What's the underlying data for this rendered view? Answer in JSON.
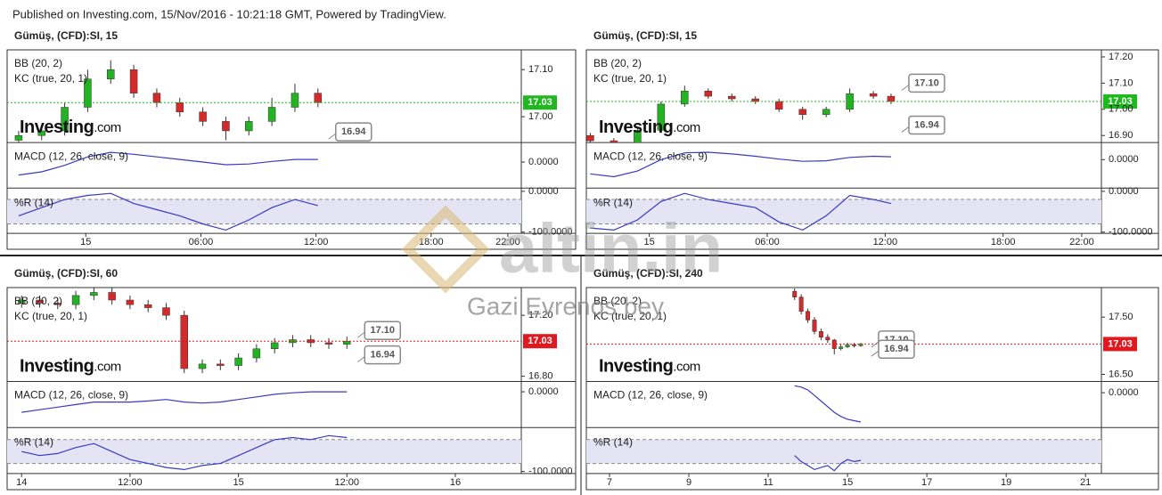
{
  "header": "Published on Investing.com, 15/Nov/2016 - 10:21:18 GMT, Powered by TradingView.",
  "brand": [
    "Investing",
    ".com"
  ],
  "watermark": [
    "altin.in",
    "Gazi Evrenos bey"
  ],
  "chart_data": [
    {
      "type": "candlestick",
      "title": "Gümüş, (CFD):SI, 15",
      "indicators": [
        "BB (20, 2)",
        "KC (true, 20, 1)"
      ],
      "x": [
        -3.5,
        -2.3,
        -1.1,
        0.1,
        1.3,
        2.5,
        3.7,
        4.9,
        6.1,
        7.3,
        8.5,
        9.7,
        10.9,
        12.1
      ],
      "open": [
        16.95,
        16.96,
        16.97,
        17.02,
        17.08,
        17.1,
        17.05,
        17.03,
        17.01,
        16.99,
        16.97,
        16.99,
        17.02,
        17.05
      ],
      "high": [
        16.97,
        16.98,
        17.03,
        17.1,
        17.12,
        17.11,
        17.06,
        17.04,
        17.02,
        17.0,
        17.0,
        17.04,
        17.07,
        17.06
      ],
      "low": [
        16.94,
        16.95,
        16.96,
        17.01,
        17.07,
        17.04,
        17.02,
        17.0,
        16.98,
        16.95,
        16.96,
        16.98,
        17.01,
        17.02
      ],
      "close": [
        16.96,
        16.97,
        17.02,
        17.08,
        17.1,
        17.05,
        17.03,
        17.01,
        16.99,
        16.97,
        16.99,
        17.02,
        17.05,
        17.03
      ],
      "xlim": [
        -4.1,
        22.7
      ],
      "xticks": [
        {
          "value": 0,
          "label": "15"
        },
        {
          "value": 6,
          "label": "06:00"
        },
        {
          "value": 12,
          "label": "12:00"
        },
        {
          "value": 18,
          "label": "18:00"
        },
        {
          "value": 22,
          "label": "22:00"
        }
      ],
      "ylim": [
        16.945,
        17.142
      ],
      "yticks": [
        {
          "value": 17,
          "label": "17.00"
        },
        {
          "value": 17.1,
          "label": "17.10"
        }
      ],
      "last_price": {
        "value": 17.03,
        "label": "17.03"
      },
      "last_price_color": "#1fb81f",
      "alerts": [
        {
          "value": 16.94,
          "label": "16.94"
        }
      ],
      "macd": {
        "name": "MACD (12, 26, close, 9)",
        "values": [
          -0.02,
          -0.015,
          -0.005,
          0.008,
          0.015,
          0.012,
          0.008,
          0.004,
          0,
          -0.004,
          -0.003,
          0.001,
          0.004,
          0.004
        ],
        "ylim": [
          -0.04,
          0.03
        ],
        "yticks": [
          {
            "value": 0,
            "label": "0.0000"
          }
        ]
      },
      "williams_r": {
        "name": "%R (14)",
        "values": [
          -60,
          -40,
          -20,
          -10,
          -5,
          -30,
          -45,
          -60,
          -80,
          -95,
          -70,
          -40,
          -20,
          -35
        ],
        "ylim": [
          -103,
          8
        ],
        "yticks": [
          {
            "value": 0,
            "label": "0.0000"
          },
          {
            "value": -100,
            "label": "-100.0000"
          }
        ],
        "zone": [
          -80,
          -20
        ]
      }
    },
    {
      "type": "candlestick",
      "title": "Gümüş, (CFD):SI, 15",
      "indicators": [
        "BB (20, 2)",
        "KC (true, 20, 1)"
      ],
      "x": [
        -3,
        -1.8,
        -0.6,
        0.6,
        1.8,
        3,
        4.2,
        5.4,
        6.6,
        7.8,
        9,
        10.2,
        11.4,
        12.3
      ],
      "open": [
        16.9,
        16.88,
        16.87,
        16.92,
        17.02,
        17.07,
        17.05,
        17.04,
        17.03,
        17.0,
        16.98,
        17.0,
        17.06,
        17.05
      ],
      "high": [
        16.91,
        16.89,
        16.93,
        17.03,
        17.09,
        17.08,
        17.06,
        17.05,
        17.04,
        17.01,
        17.01,
        17.08,
        17.07,
        17.06
      ],
      "low": [
        16.87,
        16.86,
        16.86,
        16.91,
        17.01,
        17.04,
        17.03,
        17.02,
        16.99,
        16.96,
        16.97,
        16.99,
        17.04,
        17.02
      ],
      "close": [
        16.88,
        16.87,
        16.92,
        17.02,
        17.07,
        17.05,
        17.04,
        17.03,
        17.0,
        16.98,
        17.0,
        17.06,
        17.05,
        17.03
      ],
      "xlim": [
        -3.2,
        23
      ],
      "xticks": [
        {
          "value": 0,
          "label": "15"
        },
        {
          "value": 6,
          "label": "06:00"
        },
        {
          "value": 12,
          "label": "12:00"
        },
        {
          "value": 18,
          "label": "18:00"
        },
        {
          "value": 22,
          "label": "22:00"
        }
      ],
      "ylim": [
        16.873,
        17.227
      ],
      "yticks": [
        {
          "value": 16.9,
          "label": "16.90"
        },
        {
          "value": 17,
          "label": "17.00"
        },
        {
          "value": 17.1,
          "label": "17.10"
        },
        {
          "value": 17.2,
          "label": "17.20"
        }
      ],
      "last_price": {
        "value": 17.03,
        "label": "17.03"
      },
      "last_price_color": "#1fb81f",
      "alerts": [
        {
          "value": 17.1,
          "label": "17.10"
        },
        {
          "value": 16.94,
          "label": "16.94"
        }
      ],
      "macd": {
        "name": "MACD (12, 26, close, 9)",
        "values": [
          -0.025,
          -0.03,
          -0.02,
          0,
          0.012,
          0.013,
          0.01,
          0.006,
          0.001,
          -0.003,
          -0.002,
          0.004,
          0.006,
          0.005
        ],
        "ylim": [
          -0.05,
          0.03
        ],
        "yticks": [
          {
            "value": 0,
            "label": "0.0000"
          }
        ]
      },
      "williams_r": {
        "name": "%R (14)",
        "values": [
          -90,
          -95,
          -70,
          -25,
          -5,
          -20,
          -30,
          -40,
          -75,
          -95,
          -60,
          -10,
          -20,
          -30
        ],
        "ylim": [
          -103,
          8
        ],
        "yticks": [
          {
            "value": 0,
            "label": "0.0000"
          },
          {
            "value": -100,
            "label": "-100.0000"
          }
        ],
        "zone": [
          -80,
          -20
        ]
      }
    },
    {
      "type": "candlestick",
      "title": "Gümüş, (CFD):SI, 60",
      "indicators": [
        "BB (20, 2)",
        "KC (true, 20, 1)"
      ],
      "x": [
        0,
        2,
        4,
        6,
        8,
        10,
        12,
        14,
        16,
        18,
        20,
        22,
        24,
        26,
        28,
        30,
        32,
        34,
        36
      ],
      "open": [
        17.28,
        17.3,
        17.28,
        17.27,
        17.33,
        17.35,
        17.3,
        17.27,
        17.25,
        17.2,
        16.85,
        16.88,
        16.87,
        16.92,
        16.98,
        17.02,
        17.04,
        17.02,
        17.01
      ],
      "high": [
        17.33,
        17.33,
        17.31,
        17.36,
        17.38,
        17.38,
        17.33,
        17.3,
        17.28,
        17.23,
        16.91,
        16.91,
        16.95,
        17.01,
        17.05,
        17.07,
        17.07,
        17.05,
        17.06
      ],
      "low": [
        17.25,
        17.25,
        17.24,
        17.24,
        17.3,
        17.27,
        17.24,
        17.22,
        17.17,
        16.82,
        16.82,
        16.84,
        16.84,
        16.89,
        16.95,
        16.99,
        16.99,
        16.98,
        16.98
      ],
      "close": [
        17.3,
        17.28,
        17.27,
        17.33,
        17.35,
        17.3,
        17.27,
        17.25,
        17.2,
        16.85,
        16.88,
        16.87,
        16.92,
        16.98,
        17.02,
        17.04,
        17.02,
        17.01,
        17.03
      ],
      "xlim": [
        -1.6,
        55.3
      ],
      "xticks": [
        {
          "value": 0,
          "label": "14"
        },
        {
          "value": 12,
          "label": "12:00"
        },
        {
          "value": 24,
          "label": "15"
        },
        {
          "value": 36,
          "label": "12:00"
        },
        {
          "value": 48,
          "label": "16"
        }
      ],
      "ylim": [
        16.765,
        17.382
      ],
      "yticks": [
        {
          "value": 16.8,
          "label": "16.80"
        },
        {
          "value": 17.2,
          "label": "17.20"
        }
      ],
      "last_price": {
        "value": 17.03,
        "label": "17.03"
      },
      "last_price_color": "#e0191f",
      "alerts": [
        {
          "value": 17.1,
          "label": "17.10"
        },
        {
          "value": 16.94,
          "label": "16.94"
        }
      ],
      "macd": {
        "name": "MACD (12, 26, close, 9)",
        "values": [
          -0.04,
          -0.035,
          -0.03,
          -0.025,
          -0.02,
          -0.02,
          -0.02,
          -0.018,
          -0.015,
          -0.02,
          -0.022,
          -0.02,
          -0.015,
          -0.01,
          -0.005,
          -0.002,
          0,
          0,
          0
        ],
        "ylim": [
          -0.07,
          0.02
        ],
        "yticks": [
          {
            "value": 0,
            "label": "0.0000"
          }
        ]
      },
      "williams_r": {
        "name": "%R (14)",
        "values": [
          -50,
          -60,
          -55,
          -40,
          -30,
          -50,
          -70,
          -80,
          -90,
          -95,
          -85,
          -80,
          -60,
          -40,
          -20,
          -15,
          -20,
          -10,
          -15
        ],
        "ylim": [
          -105,
          10
        ],
        "yticks": [
          {
            "value": -100,
            "label": "-100.0000"
          }
        ],
        "zone": [
          -80,
          -20
        ]
      }
    },
    {
      "type": "candlestick",
      "title": "Gümüş, (CFD):SI, 240",
      "indicators": [
        "BB (20, 2)",
        "KC (true, 20, 1)"
      ],
      "x": [
        28,
        29,
        30,
        31,
        32,
        33,
        34,
        35,
        36,
        37,
        38
      ],
      "open": [
        17.95,
        17.85,
        17.6,
        17.45,
        17.25,
        17.15,
        17.1,
        16.95,
        16.98,
        17.02,
        17.0
      ],
      "high": [
        18.0,
        17.9,
        17.65,
        17.5,
        17.3,
        17.2,
        17.12,
        17.02,
        17.05,
        17.05,
        17.05
      ],
      "low": [
        17.8,
        17.55,
        17.4,
        17.2,
        17.1,
        17.05,
        16.85,
        16.92,
        16.96,
        16.97,
        16.98
      ],
      "close": [
        17.85,
        17.6,
        17.45,
        17.25,
        17.15,
        17.1,
        16.95,
        16.98,
        17.02,
        17.0,
        17.03
      ],
      "xlim": [
        -3.5,
        74.4
      ],
      "xticks": [
        {
          "value": 0,
          "label": "7"
        },
        {
          "value": 12,
          "label": "9"
        },
        {
          "value": 24,
          "label": "11"
        },
        {
          "value": 36,
          "label": "15"
        },
        {
          "value": 48,
          "label": "17"
        },
        {
          "value": 60,
          "label": "19"
        },
        {
          "value": 72,
          "label": "21"
        }
      ],
      "ylim": [
        16.375,
        18.016
      ],
      "yticks": [
        {
          "value": 16.5,
          "label": "16.50"
        },
        {
          "value": 17.5,
          "label": "17.50"
        }
      ],
      "last_price": {
        "value": 17.03,
        "label": "17.03"
      },
      "last_price_color": "#e0191f",
      "alerts": [
        {
          "value": 17.1,
          "label": "17.10"
        },
        {
          "value": 16.94,
          "label": "16.94"
        }
      ],
      "macd": {
        "name": "MACD (12, 26, close, 9)",
        "values": [
          0.05,
          0.04,
          0.02,
          -0.02,
          -0.06,
          -0.1,
          -0.14,
          -0.17,
          -0.19,
          -0.2,
          -0.21
        ],
        "ylim": [
          -0.25,
          0.08
        ],
        "yticks": [
          {
            "value": 0,
            "label": "0.0000"
          }
        ]
      },
      "williams_r": {
        "name": "%R (14)",
        "values": [
          -60,
          -75,
          -85,
          -95,
          -90,
          -85,
          -98,
          -80,
          -70,
          -75,
          -72
        ],
        "ylim": [
          -105,
          10
        ],
        "yticks": [],
        "zone": [
          -80,
          -20
        ]
      }
    }
  ]
}
